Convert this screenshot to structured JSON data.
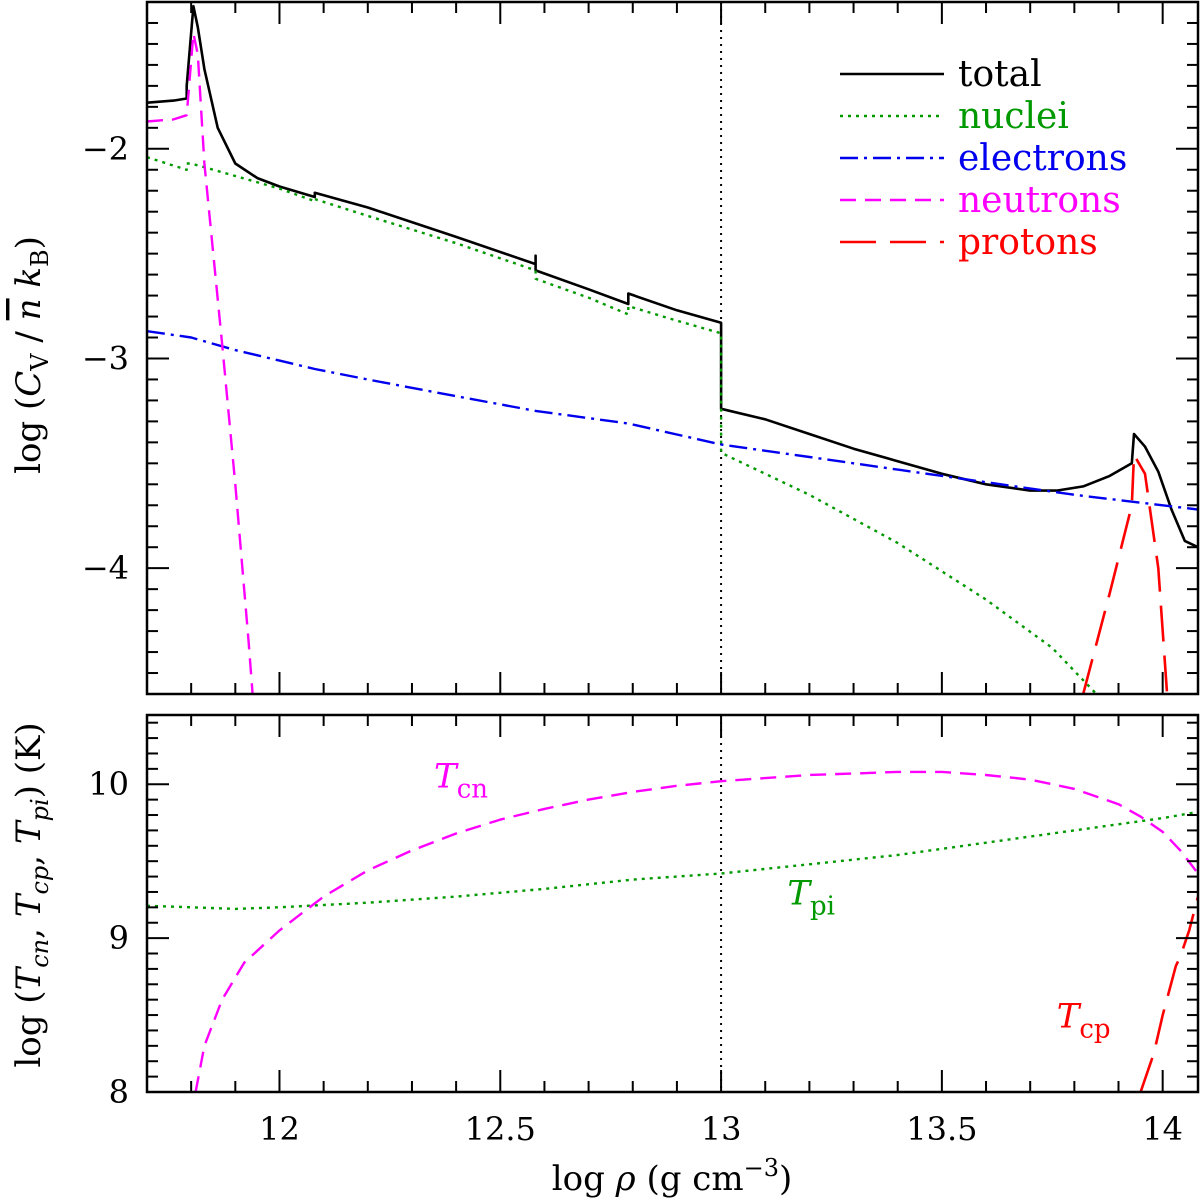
{
  "chart_data": {
    "type": "line",
    "xlim": [
      11.7,
      14.08
    ],
    "x_ticks": [
      {
        "v": 12,
        "label": "12"
      },
      {
        "v": 12.5,
        "label": "12.5"
      },
      {
        "v": 13,
        "label": "13"
      },
      {
        "v": 13.5,
        "label": "13.5"
      },
      {
        "v": 14,
        "label": "14"
      }
    ],
    "xlabel": {
      "main": "log ",
      "sym": "ρ",
      "units": " (g cm",
      "exp": "−3",
      "close": ")"
    },
    "vline_x": 13,
    "top": {
      "ylim": [
        -4.6,
        -1.3
      ],
      "y_ticks": [
        {
          "v": -2,
          "label": "−2"
        },
        {
          "v": -3,
          "label": "−3"
        },
        {
          "v": -4,
          "label": "−4"
        }
      ],
      "ylabel": {
        "pre": "log (",
        "cv": "C",
        "cv_sub": "V",
        "slash": " / ",
        "nbar": "n",
        "kb": "k",
        "kb_sub": "B",
        "close": ")"
      },
      "legend": [
        {
          "key": "total",
          "label": "total",
          "color": "#000000"
        },
        {
          "key": "nuclei",
          "label": "nuclei",
          "color": "#009900"
        },
        {
          "key": "electrons",
          "label": "electrons",
          "color": "#0000ee"
        },
        {
          "key": "neutrons",
          "label": "neutrons",
          "color": "#ff00ff"
        },
        {
          "key": "protons",
          "label": "protons",
          "color": "#ff0000"
        }
      ],
      "series": [
        {
          "name": "total",
          "color": "#000000",
          "dash": "",
          "width": 2.6,
          "points": [
            [
              11.7,
              -1.78
            ],
            [
              11.76,
              -1.77
            ],
            [
              11.79,
              -1.76
            ],
            [
              11.79,
              -1.7
            ],
            [
              11.805,
              -1.32
            ],
            [
              11.815,
              -1.42
            ],
            [
              11.83,
              -1.62
            ],
            [
              11.86,
              -1.9
            ],
            [
              11.9,
              -2.07
            ],
            [
              11.95,
              -2.14
            ],
            [
              12.0,
              -2.18
            ],
            [
              12.08,
              -2.23
            ],
            [
              12.08,
              -2.21
            ],
            [
              12.2,
              -2.28
            ],
            [
              12.4,
              -2.42
            ],
            [
              12.58,
              -2.55
            ],
            [
              12.58,
              -2.51
            ],
            [
              12.58,
              -2.58
            ],
            [
              12.7,
              -2.67
            ],
            [
              12.79,
              -2.74
            ],
            [
              12.79,
              -2.69
            ],
            [
              12.9,
              -2.77
            ],
            [
              13.0,
              -2.83
            ],
            [
              13.0,
              -3.24
            ],
            [
              13.1,
              -3.29
            ],
            [
              13.2,
              -3.36
            ],
            [
              13.3,
              -3.43
            ],
            [
              13.4,
              -3.49
            ],
            [
              13.5,
              -3.55
            ],
            [
              13.6,
              -3.6
            ],
            [
              13.7,
              -3.63
            ],
            [
              13.76,
              -3.63
            ],
            [
              13.82,
              -3.61
            ],
            [
              13.88,
              -3.56
            ],
            [
              13.93,
              -3.5
            ],
            [
              13.935,
              -3.36
            ],
            [
              13.96,
              -3.42
            ],
            [
              13.99,
              -3.54
            ],
            [
              14.02,
              -3.72
            ],
            [
              14.05,
              -3.87
            ],
            [
              14.08,
              -3.9
            ]
          ]
        },
        {
          "name": "nuclei",
          "color": "#009900",
          "dash": "3 5",
          "width": 2.4,
          "points": [
            [
              11.7,
              -2.04
            ],
            [
              11.79,
              -2.1
            ],
            [
              11.79,
              -2.07
            ],
            [
              11.8,
              -2.07
            ],
            [
              11.9,
              -2.13
            ],
            [
              12.0,
              -2.19
            ],
            [
              12.08,
              -2.25
            ],
            [
              12.08,
              -2.24
            ],
            [
              12.2,
              -2.32
            ],
            [
              12.4,
              -2.45
            ],
            [
              12.58,
              -2.58
            ],
            [
              12.58,
              -2.62
            ],
            [
              12.7,
              -2.71
            ],
            [
              12.79,
              -2.79
            ],
            [
              12.79,
              -2.75
            ],
            [
              12.9,
              -2.82
            ],
            [
              13.0,
              -2.88
            ],
            [
              13.0,
              -3.45
            ],
            [
              13.2,
              -3.65
            ],
            [
              13.4,
              -3.88
            ],
            [
              13.6,
              -4.15
            ],
            [
              13.75,
              -4.38
            ],
            [
              13.85,
              -4.6
            ]
          ]
        },
        {
          "name": "electrons",
          "color": "#0000ee",
          "dash": "18 6 3 6",
          "width": 2.4,
          "points": [
            [
              11.7,
              -2.87
            ],
            [
              11.8,
              -2.9
            ],
            [
              11.9,
              -2.96
            ],
            [
              12.0,
              -3.01
            ],
            [
              12.08,
              -3.05
            ],
            [
              12.2,
              -3.1
            ],
            [
              12.4,
              -3.18
            ],
            [
              12.58,
              -3.25
            ],
            [
              12.79,
              -3.31
            ],
            [
              13.0,
              -3.41
            ],
            [
              13.2,
              -3.47
            ],
            [
              13.4,
              -3.53
            ],
            [
              13.6,
              -3.59
            ],
            [
              13.8,
              -3.65
            ],
            [
              14.0,
              -3.7
            ],
            [
              14.08,
              -3.72
            ]
          ]
        },
        {
          "name": "neutrons",
          "color": "#ff00ff",
          "dash": "16 9",
          "width": 2.4,
          "points": [
            [
              11.7,
              -1.87
            ],
            [
              11.76,
              -1.86
            ],
            [
              11.79,
              -1.84
            ],
            [
              11.805,
              -1.45
            ],
            [
              11.815,
              -1.55
            ],
            [
              11.83,
              -2.07
            ],
            [
              11.87,
              -2.93
            ],
            [
              11.9,
              -3.6
            ],
            [
              11.93,
              -4.35
            ],
            [
              11.95,
              -4.9
            ]
          ]
        },
        {
          "name": "protons",
          "color": "#ff0000",
          "dash": "36 14",
          "width": 2.6,
          "points": [
            [
              13.82,
              -4.6
            ],
            [
              13.88,
              -4.12
            ],
            [
              13.93,
              -3.7
            ],
            [
              13.935,
              -3.46
            ],
            [
              13.96,
              -3.55
            ],
            [
              13.99,
              -4.0
            ],
            [
              14.01,
              -4.6
            ]
          ]
        }
      ]
    },
    "bottom": {
      "ylim": [
        8.0,
        10.45
      ],
      "y_ticks": [
        {
          "v": 8,
          "label": "8"
        },
        {
          "v": 9,
          "label": "9"
        },
        {
          "v": 10,
          "label": "10"
        }
      ],
      "ylabel": {
        "pre": "log (",
        "t1": "T",
        "t1_sub": "cn",
        "c1": ", ",
        "t2": "T",
        "t2_sub": "cp",
        "c2": ", ",
        "t3": "T",
        "t3_sub": "pi",
        "close": ")  (K)"
      },
      "series": [
        {
          "name": "Tpi",
          "color": "#009900",
          "dash": "3 5",
          "width": 2.4,
          "points": [
            [
              11.7,
              9.21
            ],
            [
              11.8,
              9.2
            ],
            [
              11.9,
              9.19
            ],
            [
              12.0,
              9.2
            ],
            [
              12.2,
              9.23
            ],
            [
              12.4,
              9.27
            ],
            [
              12.6,
              9.32
            ],
            [
              12.8,
              9.38
            ],
            [
              13.0,
              9.42
            ],
            [
              13.2,
              9.48
            ],
            [
              13.4,
              9.54
            ],
            [
              13.6,
              9.62
            ],
            [
              13.8,
              9.7
            ],
            [
              14.0,
              9.78
            ],
            [
              14.08,
              9.82
            ]
          ]
        },
        {
          "name": "Tcn",
          "color": "#ff00ff",
          "dash": "16 9",
          "width": 2.4,
          "points": [
            [
              11.81,
              8.0
            ],
            [
              11.83,
              8.3
            ],
            [
              11.87,
              8.6
            ],
            [
              11.92,
              8.84
            ],
            [
              12.0,
              9.05
            ],
            [
              12.1,
              9.27
            ],
            [
              12.2,
              9.44
            ],
            [
              12.3,
              9.57
            ],
            [
              12.4,
              9.68
            ],
            [
              12.5,
              9.77
            ],
            [
              12.6,
              9.84
            ],
            [
              12.7,
              9.9
            ],
            [
              12.8,
              9.95
            ],
            [
              12.9,
              9.99
            ],
            [
              13.0,
              10.02
            ],
            [
              13.1,
              10.04
            ],
            [
              13.2,
              10.06
            ],
            [
              13.3,
              10.07
            ],
            [
              13.4,
              10.08
            ],
            [
              13.5,
              10.08
            ],
            [
              13.6,
              10.06
            ],
            [
              13.7,
              10.03
            ],
            [
              13.8,
              9.97
            ],
            [
              13.9,
              9.87
            ],
            [
              13.95,
              9.79
            ],
            [
              14.0,
              9.69
            ],
            [
              14.04,
              9.57
            ],
            [
              14.08,
              9.42
            ]
          ]
        },
        {
          "name": "Tcp",
          "color": "#ff0000",
          "dash": "36 14",
          "width": 2.6,
          "points": [
            [
              13.95,
              8.0
            ],
            [
              13.98,
              8.25
            ],
            [
              14.0,
              8.5
            ],
            [
              14.03,
              8.82
            ],
            [
              14.04,
              8.88
            ],
            [
              14.06,
              9.05
            ],
            [
              14.08,
              9.27
            ]
          ]
        }
      ],
      "labels": [
        {
          "key": "Tcn",
          "main": "T",
          "sub": "cn",
          "color": "#ff00ff",
          "x": 12.35,
          "y": 9.98
        },
        {
          "key": "Tpi",
          "main": "T",
          "sub": "pi",
          "color": "#009900",
          "x": 13.15,
          "y": 9.22
        },
        {
          "key": "Tcp",
          "main": "T",
          "sub": "cp",
          "color": "#ff0000",
          "x": 13.76,
          "y": 8.42
        }
      ]
    }
  }
}
